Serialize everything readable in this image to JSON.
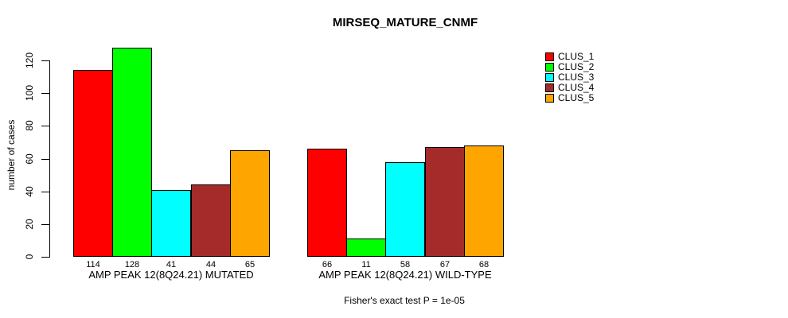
{
  "chart_data": {
    "type": "bar",
    "title": "MIRSEQ_MATURE_CNMF",
    "ylabel": "number of cases",
    "xlabel": "",
    "ylim": [
      0,
      130
    ],
    "yticks": [
      0,
      20,
      40,
      60,
      80,
      100,
      120
    ],
    "grid": false,
    "legend_position": "top-right",
    "bar_value_labels": true,
    "categories": [
      "CLUS_1",
      "CLUS_2",
      "CLUS_3",
      "CLUS_4",
      "CLUS_5"
    ],
    "series_colors": [
      "#FF0000",
      "#00FF00",
      "#00FFFF",
      "#A52A2A",
      "#FFA500"
    ],
    "groups": [
      {
        "label": "AMP PEAK 12(8Q24.21) MUTATED",
        "values": [
          114,
          128,
          41,
          44,
          65
        ]
      },
      {
        "label": "AMP PEAK 12(8Q24.21) WILD-TYPE",
        "values": [
          66,
          11,
          58,
          67,
          68
        ]
      }
    ],
    "legend": [
      {
        "label": "CLUS_1",
        "color": "#FF0000"
      },
      {
        "label": "CLUS_2",
        "color": "#00FF00"
      },
      {
        "label": "CLUS_3",
        "color": "#00FFFF"
      },
      {
        "label": "CLUS_4",
        "color": "#A52A2A"
      },
      {
        "label": "CLUS_5",
        "color": "#FFA500"
      }
    ],
    "footnote": "Fisher's exact test P = 1e-05"
  }
}
